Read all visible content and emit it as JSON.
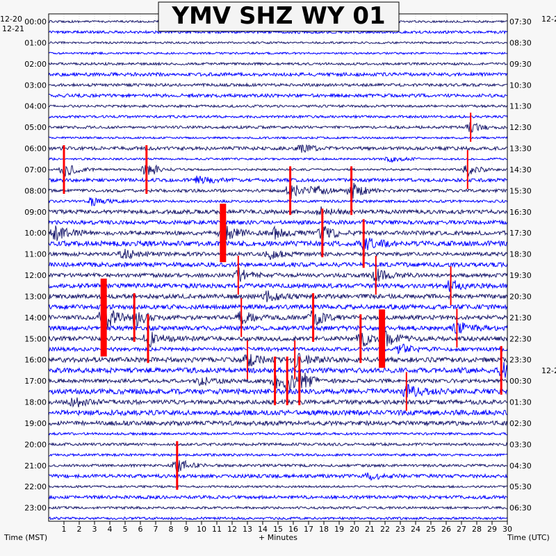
{
  "chart_data": {
    "type": "line",
    "title": "YMV SHZ WY 01",
    "xlabel": "+ Minutes",
    "left_axis_label": "Time (MST)",
    "right_axis_label": "Time (UTC)",
    "left_date_labels": [
      "12-20",
      "12-21"
    ],
    "right_date_labels": [
      "12-2",
      "12-2"
    ],
    "x_ticks": [
      "1",
      "2",
      "3",
      "4",
      "5",
      "6",
      "7",
      "8",
      "9",
      "10",
      "11",
      "12",
      "13",
      "14",
      "15",
      "16",
      "17",
      "18",
      "19",
      "20",
      "21",
      "22",
      "23",
      "24",
      "25",
      "26",
      "27",
      "28",
      "29",
      "30"
    ],
    "xlim": [
      0,
      30
    ],
    "left_hour_labels": [
      "00:00",
      "01:00",
      "02:00",
      "03:00",
      "04:00",
      "05:00",
      "06:00",
      "07:00",
      "08:00",
      "09:00",
      "10:00",
      "11:00",
      "12:00",
      "13:00",
      "14:00",
      "15:00",
      "16:00",
      "17:00",
      "18:00",
      "19:00",
      "20:00",
      "21:00",
      "22:00",
      "23:00"
    ],
    "right_hour_labels": [
      "07:30",
      "08:30",
      "09:30",
      "10:30",
      "11:30",
      "12:30",
      "13:30",
      "14:30",
      "15:30",
      "16:30",
      "17:30",
      "18:30",
      "19:30",
      "20:30",
      "21:30",
      "22:30",
      "23:30",
      "00:30",
      "01:30",
      "02:30",
      "03:30",
      "04:30",
      "05:30",
      "06:30"
    ],
    "trace_colors": [
      "#1a1a6e",
      "#0000ff"
    ],
    "clip_color": "#ff0000",
    "grid": true,
    "events": [
      {
        "hour": 5.0,
        "minute": 27.6,
        "amplitude": 3,
        "clipped": true
      },
      {
        "hour": 6.0,
        "minute": 16.5,
        "amplitude": 2,
        "clipped": false
      },
      {
        "hour": 6.5,
        "minute": 22.3,
        "amplitude": 2,
        "clipped": false
      },
      {
        "hour": 7.0,
        "minute": 1.0,
        "amplitude": 5,
        "clipped": true
      },
      {
        "hour": 7.0,
        "minute": 6.4,
        "amplitude": 5,
        "clipped": true
      },
      {
        "hour": 7.0,
        "minute": 27.4,
        "amplitude": 4,
        "clipped": true
      },
      {
        "hour": 7.5,
        "minute": 9.8,
        "amplitude": 3,
        "clipped": false
      },
      {
        "hour": 8.0,
        "minute": 15.8,
        "amplitude": 5,
        "clipped": true
      },
      {
        "hour": 8.0,
        "minute": 17.4,
        "amplitude": 3,
        "clipped": false
      },
      {
        "hour": 8.0,
        "minute": 19.8,
        "amplitude": 5,
        "clipped": true
      },
      {
        "hour": 8.5,
        "minute": 2.8,
        "amplitude": 3,
        "clipped": false
      },
      {
        "hour": 9.0,
        "minute": 17.8,
        "amplitude": 3,
        "clipped": false
      },
      {
        "hour": 10.0,
        "minute": 0.4,
        "amplitude": 5,
        "clipped": false
      },
      {
        "hour": 10.0,
        "minute": 11.4,
        "amplitude": 6,
        "clipped": true
      },
      {
        "hour": 10.0,
        "minute": 14.8,
        "amplitude": 3,
        "clipped": false
      },
      {
        "hour": 10.0,
        "minute": 17.9,
        "amplitude": 5,
        "clipped": true
      },
      {
        "hour": 10.5,
        "minute": 20.6,
        "amplitude": 5,
        "clipped": true
      },
      {
        "hour": 11.0,
        "minute": 4.9,
        "amplitude": 3,
        "clipped": false
      },
      {
        "hour": 11.0,
        "minute": 14.5,
        "amplitude": 3,
        "clipped": false
      },
      {
        "hour": 12.0,
        "minute": 12.4,
        "amplitude": 4,
        "clipped": true
      },
      {
        "hour": 12.0,
        "minute": 21.4,
        "amplitude": 4,
        "clipped": true
      },
      {
        "hour": 12.5,
        "minute": 26.3,
        "amplitude": 4,
        "clipped": true
      },
      {
        "hour": 13.0,
        "minute": 14.3,
        "amplitude": 3,
        "clipped": false
      },
      {
        "hour": 14.0,
        "minute": 3.6,
        "amplitude": 8,
        "clipped": true
      },
      {
        "hour": 14.0,
        "minute": 5.6,
        "amplitude": 5,
        "clipped": true
      },
      {
        "hour": 14.0,
        "minute": 12.6,
        "amplitude": 4,
        "clipped": true
      },
      {
        "hour": 14.0,
        "minute": 17.3,
        "amplitude": 5,
        "clipped": true
      },
      {
        "hour": 14.5,
        "minute": 26.7,
        "amplitude": 4,
        "clipped": true
      },
      {
        "hour": 15.0,
        "minute": 6.5,
        "amplitude": 5,
        "clipped": true
      },
      {
        "hour": 15.0,
        "minute": 20.4,
        "amplitude": 5,
        "clipped": true
      },
      {
        "hour": 15.0,
        "minute": 21.8,
        "amplitude": 6,
        "clipped": true
      },
      {
        "hour": 15.5,
        "minute": 23.0,
        "amplitude": 3,
        "clipped": false
      },
      {
        "hour": 16.0,
        "minute": 13.0,
        "amplitude": 4,
        "clipped": true
      },
      {
        "hour": 16.0,
        "minute": 16.1,
        "amplitude": 4,
        "clipped": true
      },
      {
        "hour": 16.5,
        "minute": 29.6,
        "amplitude": 5,
        "clipped": true
      },
      {
        "hour": 17.0,
        "minute": 9.9,
        "amplitude": 3,
        "clipped": false
      },
      {
        "hour": 17.0,
        "minute": 14.8,
        "amplitude": 5,
        "clipped": true
      },
      {
        "hour": 17.0,
        "minute": 15.6,
        "amplitude": 5,
        "clipped": true
      },
      {
        "hour": 17.0,
        "minute": 16.4,
        "amplitude": 5,
        "clipped": true
      },
      {
        "hour": 17.5,
        "minute": 23.4,
        "amplitude": 4,
        "clipped": true
      },
      {
        "hour": 18.0,
        "minute": 1.7,
        "amplitude": 3,
        "clipped": false
      },
      {
        "hour": 21.0,
        "minute": 8.4,
        "amplitude": 5,
        "clipped": true
      },
      {
        "hour": 21.5,
        "minute": 21.0,
        "amplitude": 2,
        "clipped": false
      }
    ]
  }
}
